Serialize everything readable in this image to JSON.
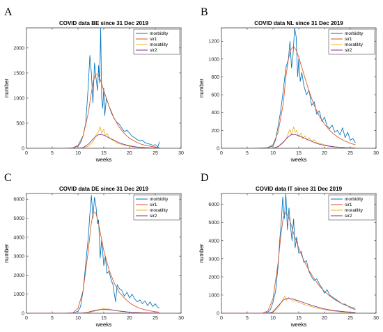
{
  "chart_data": [
    {
      "panel": "A",
      "type": "line",
      "title": "COVID data BE since 31 Dec 2019",
      "xlabel": "weeks",
      "ylabel": "number",
      "xlim": [
        0,
        30
      ],
      "ylim": [
        0,
        2400
      ],
      "xticks": [
        0,
        5,
        10,
        15,
        20,
        25,
        30
      ],
      "yticks": [
        0,
        500,
        1000,
        1500,
        2000
      ],
      "legend_position": "top-right",
      "series": [
        {
          "name": "morbidity",
          "color": "#0072BD",
          "x": [
            0,
            6,
            9,
            10,
            10.5,
            11,
            11.5,
            12,
            12.3,
            12.6,
            12.9,
            13.2,
            13.5,
            13.8,
            14,
            14.2,
            14.4,
            14.6,
            14.8,
            15,
            15.2,
            15.5,
            16,
            16.5,
            17,
            17.5,
            18,
            18.5,
            19,
            19.5,
            20,
            20.5,
            21,
            21.5,
            22,
            22.5,
            23,
            23.5,
            24,
            24.5,
            25,
            25.5,
            25.8
          ],
          "y": [
            0,
            0,
            5,
            40,
            110,
            250,
            500,
            1250,
            1850,
            1500,
            900,
            1700,
            1400,
            1150,
            1650,
            1300,
            2400,
            1000,
            800,
            1200,
            650,
            1000,
            850,
            700,
            600,
            520,
            480,
            400,
            330,
            360,
            300,
            240,
            210,
            170,
            150,
            160,
            110,
            95,
            80,
            60,
            70,
            30,
            130
          ]
        },
        {
          "name": "sir1",
          "color": "#D95319",
          "x": [
            0,
            8,
            9,
            10,
            11,
            12,
            12.5,
            13,
            13.5,
            14,
            14.5,
            15,
            16,
            17,
            18,
            19,
            20,
            21,
            22,
            23,
            24,
            25,
            25.8
          ],
          "y": [
            0,
            0,
            10,
            60,
            250,
            700,
            1050,
            1350,
            1480,
            1450,
            1320,
            1150,
            850,
            600,
            420,
            290,
            200,
            140,
            90,
            60,
            40,
            25,
            15
          ]
        },
        {
          "name": "moratility",
          "color": "#EDB120",
          "x": [
            0,
            10,
            11,
            12,
            12.5,
            13,
            13.5,
            14,
            14.3,
            14.6,
            15,
            15.3,
            15.6,
            16,
            16.5,
            17,
            17.5,
            18,
            19,
            20,
            21,
            22,
            23,
            24,
            25,
            25.8
          ],
          "y": [
            0,
            0,
            10,
            40,
            80,
            150,
            260,
            340,
            430,
            300,
            380,
            250,
            300,
            220,
            170,
            150,
            110,
            90,
            60,
            40,
            25,
            15,
            10,
            5,
            2,
            0
          ]
        },
        {
          "name": "sir2",
          "color": "#7E2F8E",
          "x": [
            0,
            10,
            11,
            12,
            13,
            13.5,
            14,
            14.5,
            15,
            16,
            17,
            18,
            19,
            20,
            21,
            22,
            24,
            25.8
          ],
          "y": [
            0,
            0,
            15,
            80,
            190,
            240,
            270,
            275,
            260,
            210,
            160,
            110,
            75,
            50,
            30,
            20,
            8,
            4
          ]
        }
      ]
    },
    {
      "panel": "B",
      "type": "line",
      "title": "COVID data NL since 31 Dec 2019",
      "xlabel": "weeks",
      "ylabel": "number",
      "xlim": [
        0,
        30
      ],
      "ylim": [
        0,
        1350
      ],
      "xticks": [
        0,
        5,
        10,
        15,
        20,
        25,
        30
      ],
      "yticks": [
        0,
        200,
        400,
        600,
        800,
        1000,
        1200
      ],
      "legend_position": "top-right",
      "series": [
        {
          "name": "morbidity",
          "color": "#0072BD",
          "x": [
            0,
            6,
            9,
            10,
            10.5,
            11,
            11.5,
            12,
            12.5,
            13,
            13.3,
            13.6,
            13.9,
            14.2,
            14.5,
            14.8,
            15,
            15.3,
            15.6,
            16,
            16.5,
            17,
            17.5,
            18,
            18.5,
            19,
            19.5,
            20,
            20.5,
            21,
            21.5,
            22,
            22.5,
            23,
            23.5,
            24,
            24.5,
            25,
            25.5,
            26
          ],
          "y": [
            0,
            0,
            5,
            25,
            90,
            250,
            420,
            650,
            900,
            1000,
            1200,
            900,
            1050,
            1350,
            1250,
            800,
            1000,
            750,
            850,
            700,
            600,
            650,
            480,
            520,
            380,
            420,
            300,
            350,
            250,
            220,
            260,
            180,
            200,
            150,
            230,
            120,
            180,
            90,
            110,
            60
          ]
        },
        {
          "name": "sir1",
          "color": "#D95319",
          "x": [
            0,
            8,
            9,
            10,
            11,
            12,
            12.5,
            13,
            13.5,
            14,
            14.5,
            15,
            16,
            17,
            18,
            19,
            20,
            21,
            22,
            23,
            24,
            25,
            26
          ],
          "y": [
            0,
            0,
            8,
            40,
            180,
            500,
            800,
            1000,
            1110,
            1140,
            1100,
            1020,
            830,
            640,
            480,
            360,
            270,
            200,
            150,
            110,
            80,
            55,
            40
          ]
        },
        {
          "name": "moratility",
          "color": "#EDB120",
          "x": [
            0,
            10,
            11,
            12,
            12.5,
            13,
            13.3,
            13.6,
            14,
            14.3,
            14.6,
            15,
            15.4,
            15.8,
            16.2,
            16.6,
            17,
            17.5,
            18,
            18.5,
            19,
            20,
            21,
            22,
            23,
            24,
            25,
            26
          ],
          "y": [
            0,
            0,
            15,
            60,
            100,
            170,
            210,
            150,
            240,
            180,
            200,
            130,
            170,
            110,
            140,
            90,
            120,
            80,
            95,
            60,
            55,
            40,
            25,
            15,
            10,
            5,
            3,
            0
          ]
        },
        {
          "name": "sir2",
          "color": "#7E2F8E",
          "x": [
            0,
            10,
            11,
            12,
            13,
            13.5,
            14,
            14.5,
            15,
            16,
            17,
            18,
            19,
            20,
            21,
            22,
            24,
            26
          ],
          "y": [
            0,
            0,
            20,
            70,
            130,
            150,
            155,
            150,
            140,
            115,
            90,
            65,
            45,
            32,
            22,
            15,
            7,
            3
          ]
        }
      ]
    },
    {
      "panel": "C",
      "type": "line",
      "title": "COVID data DE since 31 Dec 2019",
      "xlabel": "weeks",
      "ylabel": "number",
      "xlim": [
        0,
        30
      ],
      "ylim": [
        0,
        6300
      ],
      "xticks": [
        0,
        5,
        10,
        15,
        20,
        25,
        30
      ],
      "yticks": [
        0,
        1000,
        2000,
        3000,
        4000,
        5000,
        6000
      ],
      "legend_position": "top-right",
      "series": [
        {
          "name": "morbidity",
          "color": "#0072BD",
          "x": [
            0,
            6,
            9,
            10,
            10.5,
            11,
            11.5,
            12,
            12.3,
            12.6,
            12.9,
            13.2,
            13.5,
            13.8,
            14,
            14.3,
            14.6,
            15,
            15.3,
            15.6,
            16,
            16.5,
            16.8,
            17,
            17.3,
            17.6,
            18,
            18.5,
            19,
            19.5,
            20,
            20.5,
            21,
            21.5,
            22,
            22.5,
            23,
            23.5,
            24,
            24.5,
            25,
            25.5,
            25.8
          ],
          "y": [
            0,
            0,
            10,
            100,
            350,
            1200,
            2600,
            4000,
            5200,
            6200,
            5000,
            6100,
            5600,
            4700,
            4900,
            2900,
            3900,
            2500,
            3000,
            2100,
            2200,
            1700,
            1500,
            1100,
            600,
            1500,
            1300,
            1200,
            900,
            1100,
            800,
            1000,
            750,
            600,
            700,
            500,
            650,
            400,
            600,
            350,
            500,
            300,
            300
          ]
        },
        {
          "name": "sir1",
          "color": "#D95319",
          "x": [
            0,
            8,
            9,
            10,
            11,
            12,
            12.5,
            13,
            13.5,
            14,
            14.5,
            15,
            16,
            17,
            18,
            19,
            20,
            21,
            22,
            23,
            24,
            25,
            25.8
          ],
          "y": [
            0,
            0,
            20,
            250,
            1200,
            3300,
            4600,
            5350,
            5250,
            4700,
            4000,
            3300,
            2300,
            1600,
            1100,
            800,
            550,
            380,
            260,
            180,
            120,
            80,
            55
          ]
        },
        {
          "name": "moratility",
          "color": "#EDB120",
          "x": [
            0,
            10,
            11,
            12,
            13,
            14,
            14.5,
            15,
            15.5,
            16,
            16.5,
            17,
            18,
            19,
            20,
            21,
            22,
            23,
            24,
            25,
            25.8
          ],
          "y": [
            0,
            0,
            5,
            30,
            90,
            160,
            200,
            260,
            210,
            230,
            180,
            150,
            120,
            90,
            60,
            40,
            30,
            20,
            15,
            10,
            5
          ]
        },
        {
          "name": "sir2",
          "color": "#7E2F8E",
          "x": [
            0,
            10,
            11,
            12,
            13,
            14,
            15,
            16,
            17,
            18,
            19,
            20,
            21,
            22,
            24,
            25.8
          ],
          "y": [
            0,
            0,
            15,
            60,
            130,
            180,
            200,
            185,
            150,
            110,
            80,
            55,
            38,
            25,
            12,
            6
          ]
        }
      ]
    },
    {
      "panel": "D",
      "type": "line",
      "title": "COVID data IT since 31 Dec 2019",
      "xlabel": "weeks",
      "ylabel": "number",
      "xlim": [
        0,
        30
      ],
      "ylim": [
        0,
        6600
      ],
      "xticks": [
        0,
        5,
        10,
        15,
        20,
        25,
        30
      ],
      "yticks": [
        0,
        1000,
        2000,
        3000,
        4000,
        5000,
        6000
      ],
      "legend_position": "top-right",
      "series": [
        {
          "name": "morbidity",
          "color": "#0072BD",
          "x": [
            0,
            6,
            8.5,
            9,
            9.5,
            10,
            10.5,
            11,
            11.3,
            11.6,
            11.9,
            12.2,
            12.5,
            12.8,
            13.1,
            13.4,
            13.7,
            14,
            14.3,
            14.6,
            15,
            15.5,
            16,
            16.5,
            17,
            17.5,
            18,
            18.5,
            19,
            19.5,
            20,
            20.5,
            21,
            21.5,
            22,
            22.5,
            23,
            23.5,
            24,
            24.5,
            25,
            25.5,
            26
          ],
          "y": [
            0,
            0,
            10,
            50,
            200,
            600,
            1200,
            2600,
            4000,
            5000,
            6400,
            5200,
            6600,
            4600,
            5800,
            4800,
            4000,
            5200,
            3600,
            4200,
            3300,
            3400,
            2800,
            2900,
            2300,
            2000,
            1800,
            1900,
            1600,
            1400,
            1100,
            1300,
            1000,
            900,
            800,
            700,
            600,
            500,
            500,
            400,
            300,
            250,
            200
          ]
        },
        {
          "name": "sir1",
          "color": "#D95319",
          "x": [
            0,
            7,
            8,
            9,
            10,
            11,
            11.5,
            12,
            12.5,
            13,
            13.5,
            14,
            15,
            16,
            17,
            18,
            19,
            20,
            21,
            22,
            23,
            24,
            25,
            26
          ],
          "y": [
            0,
            0,
            10,
            120,
            800,
            2800,
            4200,
            5300,
            5550,
            5350,
            4900,
            4400,
            3600,
            2900,
            2350,
            1900,
            1500,
            1200,
            950,
            750,
            580,
            450,
            350,
            270
          ]
        },
        {
          "name": "moratility",
          "color": "#EDB120",
          "x": [
            0,
            9,
            10,
            11,
            11.5,
            12,
            12.3,
            12.6,
            13,
            13.5,
            14,
            14.5,
            15,
            15.5,
            16,
            17,
            18,
            19,
            20,
            21,
            22,
            23,
            24,
            25,
            26
          ],
          "y": [
            0,
            0,
            50,
            300,
            550,
            800,
            950,
            700,
            880,
            750,
            650,
            700,
            600,
            550,
            480,
            400,
            320,
            250,
            200,
            150,
            110,
            80,
            60,
            40,
            30
          ]
        },
        {
          "name": "sir2",
          "color": "#7E2F8E",
          "x": [
            0,
            9,
            10,
            11,
            12,
            12.5,
            13,
            14,
            15,
            16,
            17,
            18,
            19,
            20,
            21,
            22,
            24,
            26
          ],
          "y": [
            0,
            0,
            80,
            400,
            720,
            800,
            820,
            770,
            680,
            580,
            480,
            390,
            310,
            240,
            185,
            140,
            80,
            45
          ]
        }
      ]
    }
  ]
}
